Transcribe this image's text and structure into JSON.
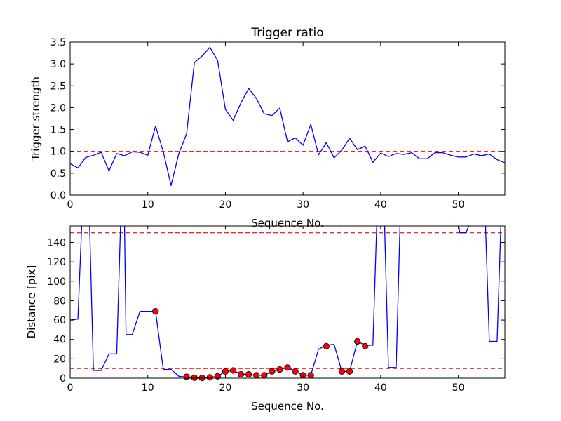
{
  "chart_data": [
    {
      "type": "line",
      "title": "Trigger ratio",
      "xlabel": "Sequence No.",
      "ylabel": "Trigger strength",
      "xlim": [
        0,
        56
      ],
      "ylim": [
        0,
        3.5
      ],
      "xticks": [
        0,
        10,
        20,
        30,
        40,
        50
      ],
      "yticks": [
        0.0,
        0.5,
        1.0,
        1.5,
        2.0,
        2.5,
        3.0,
        3.5
      ],
      "ytick_labels": [
        "0.0",
        "0.5",
        "1.0",
        "1.5",
        "2.0",
        "2.5",
        "3.0",
        "3.5"
      ],
      "grid": false,
      "series": [
        {
          "color": "#0000ff",
          "x": [
            0,
            1,
            2,
            3,
            4,
            5,
            6,
            7,
            8,
            9,
            10,
            11,
            12,
            13,
            14,
            15,
            16,
            17,
            18,
            19,
            20,
            21,
            22,
            23,
            24,
            25,
            26,
            27,
            28,
            29,
            30,
            31,
            32,
            33,
            34,
            35,
            36,
            37,
            38,
            39,
            40,
            41,
            42,
            43,
            44,
            45,
            46,
            47,
            48,
            49,
            50,
            51,
            52,
            53,
            54,
            55,
            56
          ],
          "y": [
            0.72,
            0.62,
            0.86,
            0.91,
            0.98,
            0.55,
            0.95,
            0.9,
            0.99,
            0.98,
            0.91,
            1.58,
            0.99,
            0.22,
            0.95,
            1.4,
            3.03,
            3.18,
            3.38,
            3.08,
            1.96,
            1.71,
            2.11,
            2.44,
            2.21,
            1.86,
            1.82,
            1.99,
            1.22,
            1.31,
            1.14,
            1.62,
            0.92,
            1.2,
            0.85,
            1.03,
            1.3,
            1.04,
            1.12,
            0.75,
            0.96,
            0.88,
            0.95,
            0.93,
            0.97,
            0.83,
            0.83,
            0.97,
            0.97,
            0.91,
            0.87,
            0.87,
            0.94,
            0.9,
            0.94,
            0.81,
            0.74
          ]
        }
      ],
      "hlines": [
        {
          "y": 1.0,
          "color": "#ff0000",
          "style": "dashed"
        }
      ]
    },
    {
      "type": "line",
      "title": "",
      "xlabel": "Sequence No.",
      "ylabel": "Distance [pix]",
      "xlim": [
        0,
        56
      ],
      "ylim": [
        0,
        157
      ],
      "xticks": [
        0,
        10,
        20,
        30,
        40,
        50
      ],
      "yticks": [
        0,
        20,
        40,
        60,
        80,
        100,
        120,
        140
      ],
      "ytick_labels": [
        "0",
        "20",
        "40",
        "60",
        "80",
        "100",
        "120",
        "140"
      ],
      "grid": false,
      "series": [
        {
          "color": "#0000ff",
          "x": [
            0,
            1,
            1.5,
            2.5,
            3,
            4,
            5,
            6,
            6.5,
            7,
            7.2,
            8,
            9,
            10,
            11,
            12,
            13,
            14,
            15,
            16,
            17,
            18,
            19,
            20,
            21,
            22,
            23,
            24,
            25,
            26,
            27,
            28,
            29,
            30,
            31,
            32,
            33,
            34,
            35,
            36,
            37,
            38,
            39,
            39.5,
            40.5,
            41,
            42,
            42.5,
            50,
            50.2,
            51,
            51.5,
            53.5,
            54,
            55,
            55.5
          ],
          "y": [
            60,
            61,
            160,
            160,
            8,
            8,
            25,
            25,
            160,
            160,
            45,
            45,
            69,
            69,
            69,
            9,
            9,
            2,
            1,
            0.5,
            0.3,
            0.8,
            2,
            7,
            8,
            4,
            4,
            3,
            3,
            7,
            9,
            11,
            7,
            3,
            3,
            30,
            34,
            35,
            7,
            7,
            38,
            34,
            34,
            160,
            160,
            11,
            11,
            160,
            160,
            150,
            150,
            160,
            160,
            38,
            38,
            160
          ]
        }
      ],
      "markers": {
        "color": "#ff0000",
        "x": [
          11,
          15,
          16,
          17,
          18,
          19,
          20,
          21,
          22,
          23,
          24,
          25,
          26,
          27,
          28,
          29,
          30,
          31,
          33,
          35,
          36,
          37,
          38
        ],
        "y": [
          69,
          1.5,
          0.5,
          0.3,
          0.8,
          2,
          7,
          8,
          4,
          4,
          3,
          3,
          7,
          9,
          11,
          7,
          3,
          3,
          33,
          7,
          7,
          38,
          33
        ]
      },
      "hlines": [
        {
          "y": 150,
          "color": "#ff0000",
          "style": "dashed"
        },
        {
          "y": 10,
          "color": "#ff0000",
          "style": "dashed"
        }
      ]
    }
  ]
}
